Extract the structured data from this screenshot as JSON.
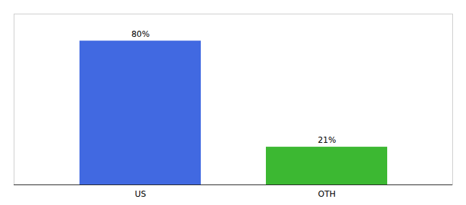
{
  "chart_data": {
    "type": "bar",
    "categories": [
      "US",
      "OTH"
    ],
    "values": [
      80,
      21
    ],
    "value_labels": [
      "80%",
      "21%"
    ],
    "colors": [
      "#4169e1",
      "#3cb832"
    ],
    "ylim": [
      0,
      95
    ],
    "data_labels": true,
    "tick_labels": "x"
  }
}
